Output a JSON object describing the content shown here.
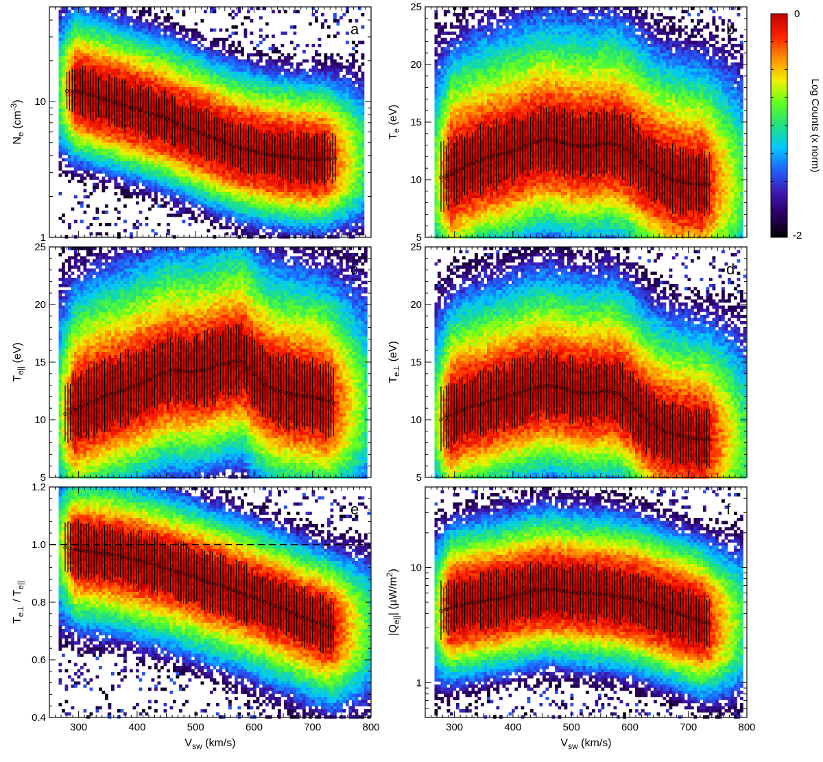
{
  "figure": {
    "colorbar": {
      "label": "Log Counts (x norm)",
      "max_label": "0",
      "min_label": "-2",
      "range": [
        -2,
        0
      ],
      "colormap": [
        "#000000",
        "#2a0060",
        "#3c18b0",
        "#2060ff",
        "#00c8ff",
        "#20e080",
        "#60ff20",
        "#f0f000",
        "#ff9000",
        "#ff2000",
        "#c00000"
      ]
    }
  },
  "chart_data": [
    {
      "id": "a",
      "letter": "a",
      "type": "heatmap",
      "xlabel": {
        "main": "V",
        "sub": "sw",
        "rest": " (km/s)"
      },
      "ylabel": {
        "main": "N",
        "sub": "e",
        "rest": " (cm",
        "sup": "-3",
        "tail": ")"
      },
      "xlim": [
        250,
        800
      ],
      "ylim": [
        1,
        50
      ],
      "yscale": "log",
      "xticks": [
        300,
        400,
        500,
        600,
        700,
        800
      ],
      "xtick_labels": [],
      "yticks": [
        1,
        10
      ],
      "ytick_labels": [
        "1",
        "10"
      ],
      "median": {
        "x": [
          280,
          300,
          320,
          340,
          360,
          380,
          400,
          420,
          440,
          460,
          480,
          500,
          520,
          540,
          560,
          580,
          600,
          620,
          640,
          660,
          680,
          700,
          720,
          740
        ],
        "y": [
          12,
          12,
          11.2,
          10.5,
          10,
          9.3,
          8.8,
          8.2,
          7.8,
          7.2,
          6.6,
          6.1,
          5.6,
          5.2,
          4.8,
          4.5,
          4.3,
          4.1,
          4.0,
          3.9,
          3.8,
          3.75,
          3.75,
          3.8
        ]
      },
      "core_width": 0.75,
      "halo_width": 1.35,
      "halo_upper_boost": 1.25,
      "cloud_start": 265,
      "cloud_end": 785,
      "errorbar_end": 740,
      "errorbar_width": 0.45,
      "dashed_line": null
    },
    {
      "id": "b",
      "letter": "b",
      "type": "heatmap",
      "xlabel": {
        "main": "V",
        "sub": "sw",
        "rest": " (km/s)"
      },
      "ylabel": {
        "main": "T",
        "sub": "e",
        "rest": " (eV)"
      },
      "xlim": [
        250,
        800
      ],
      "ylim": [
        5,
        25
      ],
      "yscale": "linear",
      "xticks": [
        300,
        400,
        500,
        600,
        700,
        800
      ],
      "xtick_labels": [],
      "yticks": [
        5,
        10,
        15,
        20,
        25
      ],
      "ytick_labels": [
        "5",
        "10",
        "15",
        "20",
        "25"
      ],
      "median": {
        "x": [
          280,
          300,
          320,
          340,
          360,
          380,
          400,
          420,
          440,
          460,
          480,
          500,
          520,
          540,
          560,
          580,
          600,
          620,
          640,
          660,
          680,
          700,
          720,
          740
        ],
        "y": [
          10.2,
          10.6,
          11.2,
          11.6,
          12.0,
          12.2,
          12.5,
          12.9,
          13.3,
          13.5,
          13.3,
          13.0,
          12.9,
          13.0,
          13.2,
          13.0,
          12.5,
          11.5,
          10.8,
          10.2,
          9.9,
          9.7,
          9.6,
          9.6
        ]
      },
      "core_width": 3.6,
      "halo_width": 6.5,
      "halo_upper_boost": 1.4,
      "cloud_start": 262,
      "cloud_end": 790,
      "errorbar_end": 740,
      "errorbar_width": 2.6,
      "dashed_line": null
    },
    {
      "id": "c",
      "letter": "c",
      "type": "heatmap",
      "xlabel": {
        "main": "V",
        "sub": "sw",
        "rest": " (km/s)"
      },
      "ylabel": {
        "main": "T",
        "sub": "e||",
        "rest": " (eV)"
      },
      "xlim": [
        250,
        800
      ],
      "ylim": [
        5,
        25
      ],
      "yscale": "linear",
      "xticks": [
        300,
        400,
        500,
        600,
        700,
        800
      ],
      "xtick_labels": [],
      "yticks": [
        5,
        10,
        15,
        20,
        25
      ],
      "ytick_labels": [
        "5",
        "10",
        "15",
        "20",
        "25"
      ],
      "median": {
        "x": [
          280,
          300,
          320,
          340,
          360,
          380,
          400,
          420,
          440,
          460,
          480,
          500,
          520,
          540,
          560,
          580,
          600,
          620,
          640,
          660,
          680,
          700,
          720,
          740
        ],
        "y": [
          10.5,
          11.0,
          11.5,
          12.0,
          12.3,
          12.6,
          13.0,
          13.5,
          14.0,
          14.3,
          14.2,
          14.2,
          14.4,
          14.8,
          15.0,
          15.2,
          14.0,
          13.0,
          12.5,
          12.3,
          12.1,
          12.0,
          11.7,
          11.4
        ]
      },
      "core_width": 3.6,
      "halo_width": 6.8,
      "halo_upper_boost": 1.35,
      "cloud_start": 262,
      "cloud_end": 790,
      "errorbar_end": 740,
      "errorbar_width": 2.8,
      "dashed_line": null
    },
    {
      "id": "d",
      "letter": "d",
      "type": "heatmap",
      "xlabel": {
        "main": "V",
        "sub": "sw",
        "rest": " (km/s)"
      },
      "ylabel": {
        "main": "T",
        "sub": "e⊥",
        "rest": " (eV)"
      },
      "xlim": [
        250,
        800
      ],
      "ylim": [
        5,
        25
      ],
      "yscale": "linear",
      "xticks": [
        300,
        400,
        500,
        600,
        700,
        800
      ],
      "xtick_labels": [],
      "yticks": [
        5,
        10,
        15,
        20,
        25
      ],
      "ytick_labels": [
        "5",
        "10",
        "15",
        "20",
        "25"
      ],
      "median": {
        "x": [
          280,
          300,
          320,
          340,
          360,
          380,
          400,
          420,
          440,
          460,
          480,
          500,
          520,
          540,
          560,
          580,
          600,
          620,
          640,
          660,
          680,
          700,
          720,
          740
        ],
        "y": [
          10.0,
          10.5,
          11.0,
          11.3,
          11.6,
          11.9,
          12.2,
          12.5,
          12.8,
          13.0,
          12.8,
          12.5,
          12.3,
          12.4,
          12.5,
          12.3,
          11.5,
          10.3,
          9.5,
          9.0,
          8.7,
          8.5,
          8.3,
          8.3
        ]
      },
      "core_width": 3.4,
      "halo_width": 6.2,
      "halo_upper_boost": 1.35,
      "cloud_start": 262,
      "cloud_end": 795,
      "errorbar_end": 740,
      "errorbar_width": 2.5,
      "dashed_line": null
    },
    {
      "id": "e",
      "letter": "e",
      "type": "heatmap",
      "xlabel": {
        "main": "V",
        "sub": "sw",
        "rest": " (km/s)"
      },
      "ylabel": {
        "main": "T",
        "sub": "e⊥",
        "rest": " / T",
        "sub2": "e||"
      },
      "xlim": [
        250,
        800
      ],
      "ylim": [
        0.4,
        1.2
      ],
      "yscale": "linear",
      "xticks": [
        300,
        400,
        500,
        600,
        700,
        800
      ],
      "xtick_labels": [
        "300",
        "400",
        "500",
        "600",
        "700",
        "800"
      ],
      "yticks": [
        0.4,
        0.6,
        0.8,
        1.0,
        1.2
      ],
      "ytick_labels": [
        "0.4",
        "0.6",
        "0.8",
        "1.0",
        "1.2"
      ],
      "median": {
        "x": [
          280,
          300,
          320,
          340,
          360,
          380,
          400,
          420,
          440,
          460,
          480,
          500,
          520,
          540,
          560,
          580,
          600,
          620,
          640,
          660,
          680,
          700,
          720,
          740
        ],
        "y": [
          0.99,
          0.98,
          0.975,
          0.97,
          0.965,
          0.955,
          0.945,
          0.935,
          0.925,
          0.91,
          0.9,
          0.885,
          0.87,
          0.86,
          0.845,
          0.83,
          0.815,
          0.8,
          0.785,
          0.77,
          0.75,
          0.735,
          0.72,
          0.71
        ]
      },
      "core_width": 0.11,
      "halo_width": 0.22,
      "halo_upper_boost": 0.9,
      "cloud_start": 262,
      "cloud_end": 795,
      "errorbar_end": 740,
      "errorbar_width": 0.09,
      "dashed_line": 1.0
    },
    {
      "id": "f",
      "letter": "f",
      "type": "heatmap",
      "xlabel": {
        "main": "V",
        "sub": "sw",
        "rest": " (km/s)"
      },
      "ylabel": {
        "main": "|Q",
        "sub": "e||",
        "rest": "| (µW/m",
        "sup": "2",
        "tail": ")"
      },
      "xlim": [
        250,
        800
      ],
      "ylim": [
        0.5,
        50
      ],
      "yscale": "log",
      "xticks": [
        300,
        400,
        500,
        600,
        700,
        800
      ],
      "xtick_labels": [
        "300",
        "400",
        "500",
        "600",
        "700",
        "800"
      ],
      "yticks": [
        1,
        10
      ],
      "ytick_labels": [
        "1",
        "10"
      ],
      "median": {
        "x": [
          280,
          300,
          320,
          340,
          360,
          380,
          400,
          420,
          440,
          460,
          480,
          500,
          520,
          540,
          560,
          580,
          600,
          620,
          640,
          660,
          680,
          700,
          720,
          740
        ],
        "y": [
          4.2,
          4.6,
          4.8,
          5.0,
          5.2,
          5.4,
          5.7,
          6.0,
          6.3,
          6.5,
          6.3,
          6.1,
          6.0,
          5.9,
          5.8,
          5.6,
          5.4,
          5.1,
          4.7,
          4.3,
          4.0,
          3.7,
          3.4,
          3.2
        ]
      },
      "core_width": 1.0,
      "halo_width": 1.9,
      "halo_upper_boost": 1.15,
      "cloud_start": 262,
      "cloud_end": 790,
      "errorbar_end": 740,
      "errorbar_width": 0.62,
      "dashed_line": null
    }
  ]
}
